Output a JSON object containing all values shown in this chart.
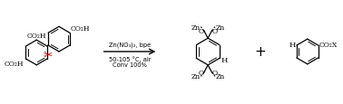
{
  "bg_color": "#ffffff",
  "text_color": "#000000",
  "red_color": "#cc0000",
  "reaction_conditions": [
    "Zn(NO₃)₂, bpe",
    "50-105 °C, air",
    "Conv 100%"
  ],
  "figsize": [
    3.78,
    1.16
  ],
  "dpi": 100
}
